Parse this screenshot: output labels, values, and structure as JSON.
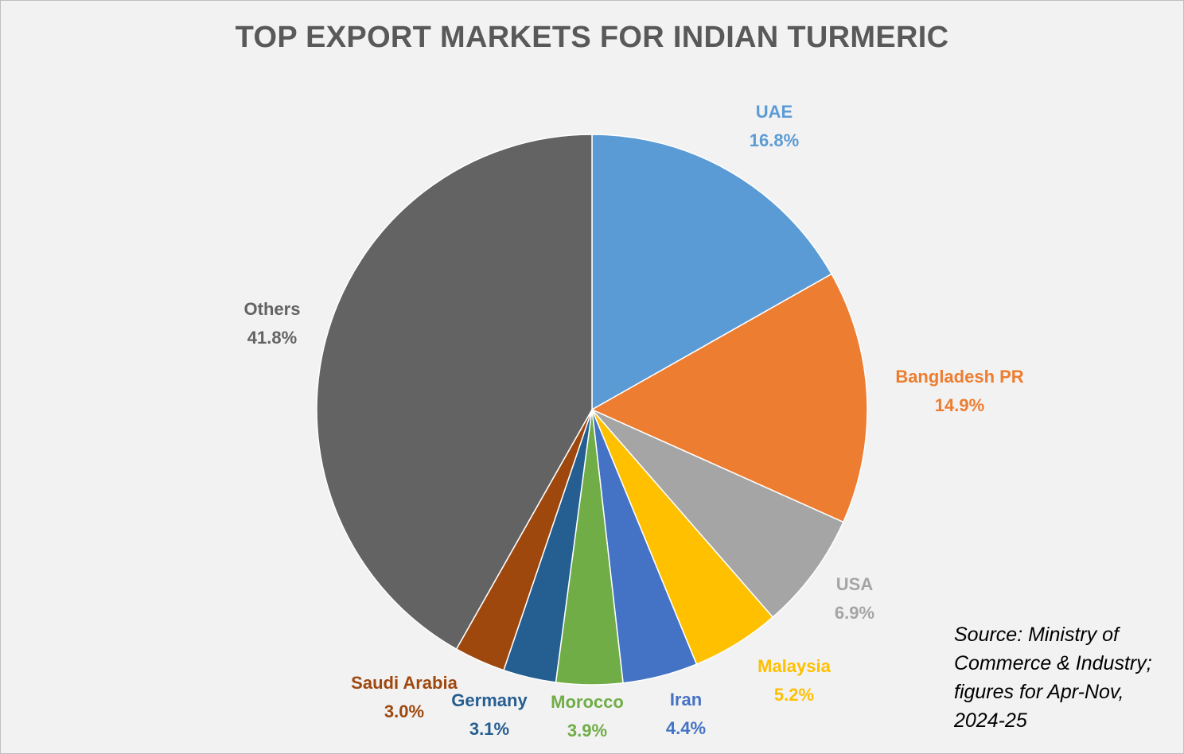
{
  "chart_data": {
    "type": "pie",
    "title": "TOP EXPORT MARKETS FOR INDIAN TURMERIC",
    "slices": [
      {
        "label": "UAE",
        "value": 16.8,
        "value_label": "16.8%",
        "color": "#5b9bd5"
      },
      {
        "label": "Bangladesh PR",
        "value": 14.9,
        "value_label": "14.9%",
        "color": "#ed7d31"
      },
      {
        "label": "USA",
        "value": 6.9,
        "value_label": "6.9%",
        "color": "#a5a5a5"
      },
      {
        "label": "Malaysia",
        "value": 5.2,
        "value_label": "5.2%",
        "color": "#ffc000"
      },
      {
        "label": "Iran",
        "value": 4.4,
        "value_label": "4.4%",
        "color": "#4472c4"
      },
      {
        "label": "Morocco",
        "value": 3.9,
        "value_label": "3.9%",
        "color": "#70ad47"
      },
      {
        "label": "Germany",
        "value": 3.1,
        "value_label": "3.1%",
        "color": "#255e91"
      },
      {
        "label": "Saudi Arabia",
        "value": 3.0,
        "value_label": "3.0%",
        "color": "#9e480e"
      },
      {
        "label": "Others",
        "value": 41.8,
        "value_label": "41.8%",
        "color": "#636363"
      }
    ],
    "legend": "none",
    "start_angle": "12 o'clock, clockwise"
  },
  "source_note": "Source: Ministry of Commerce & Industry; figures for Apr-Nov, 2024-25",
  "colors": {
    "background": "#f2f2f2",
    "title": "#595959"
  }
}
